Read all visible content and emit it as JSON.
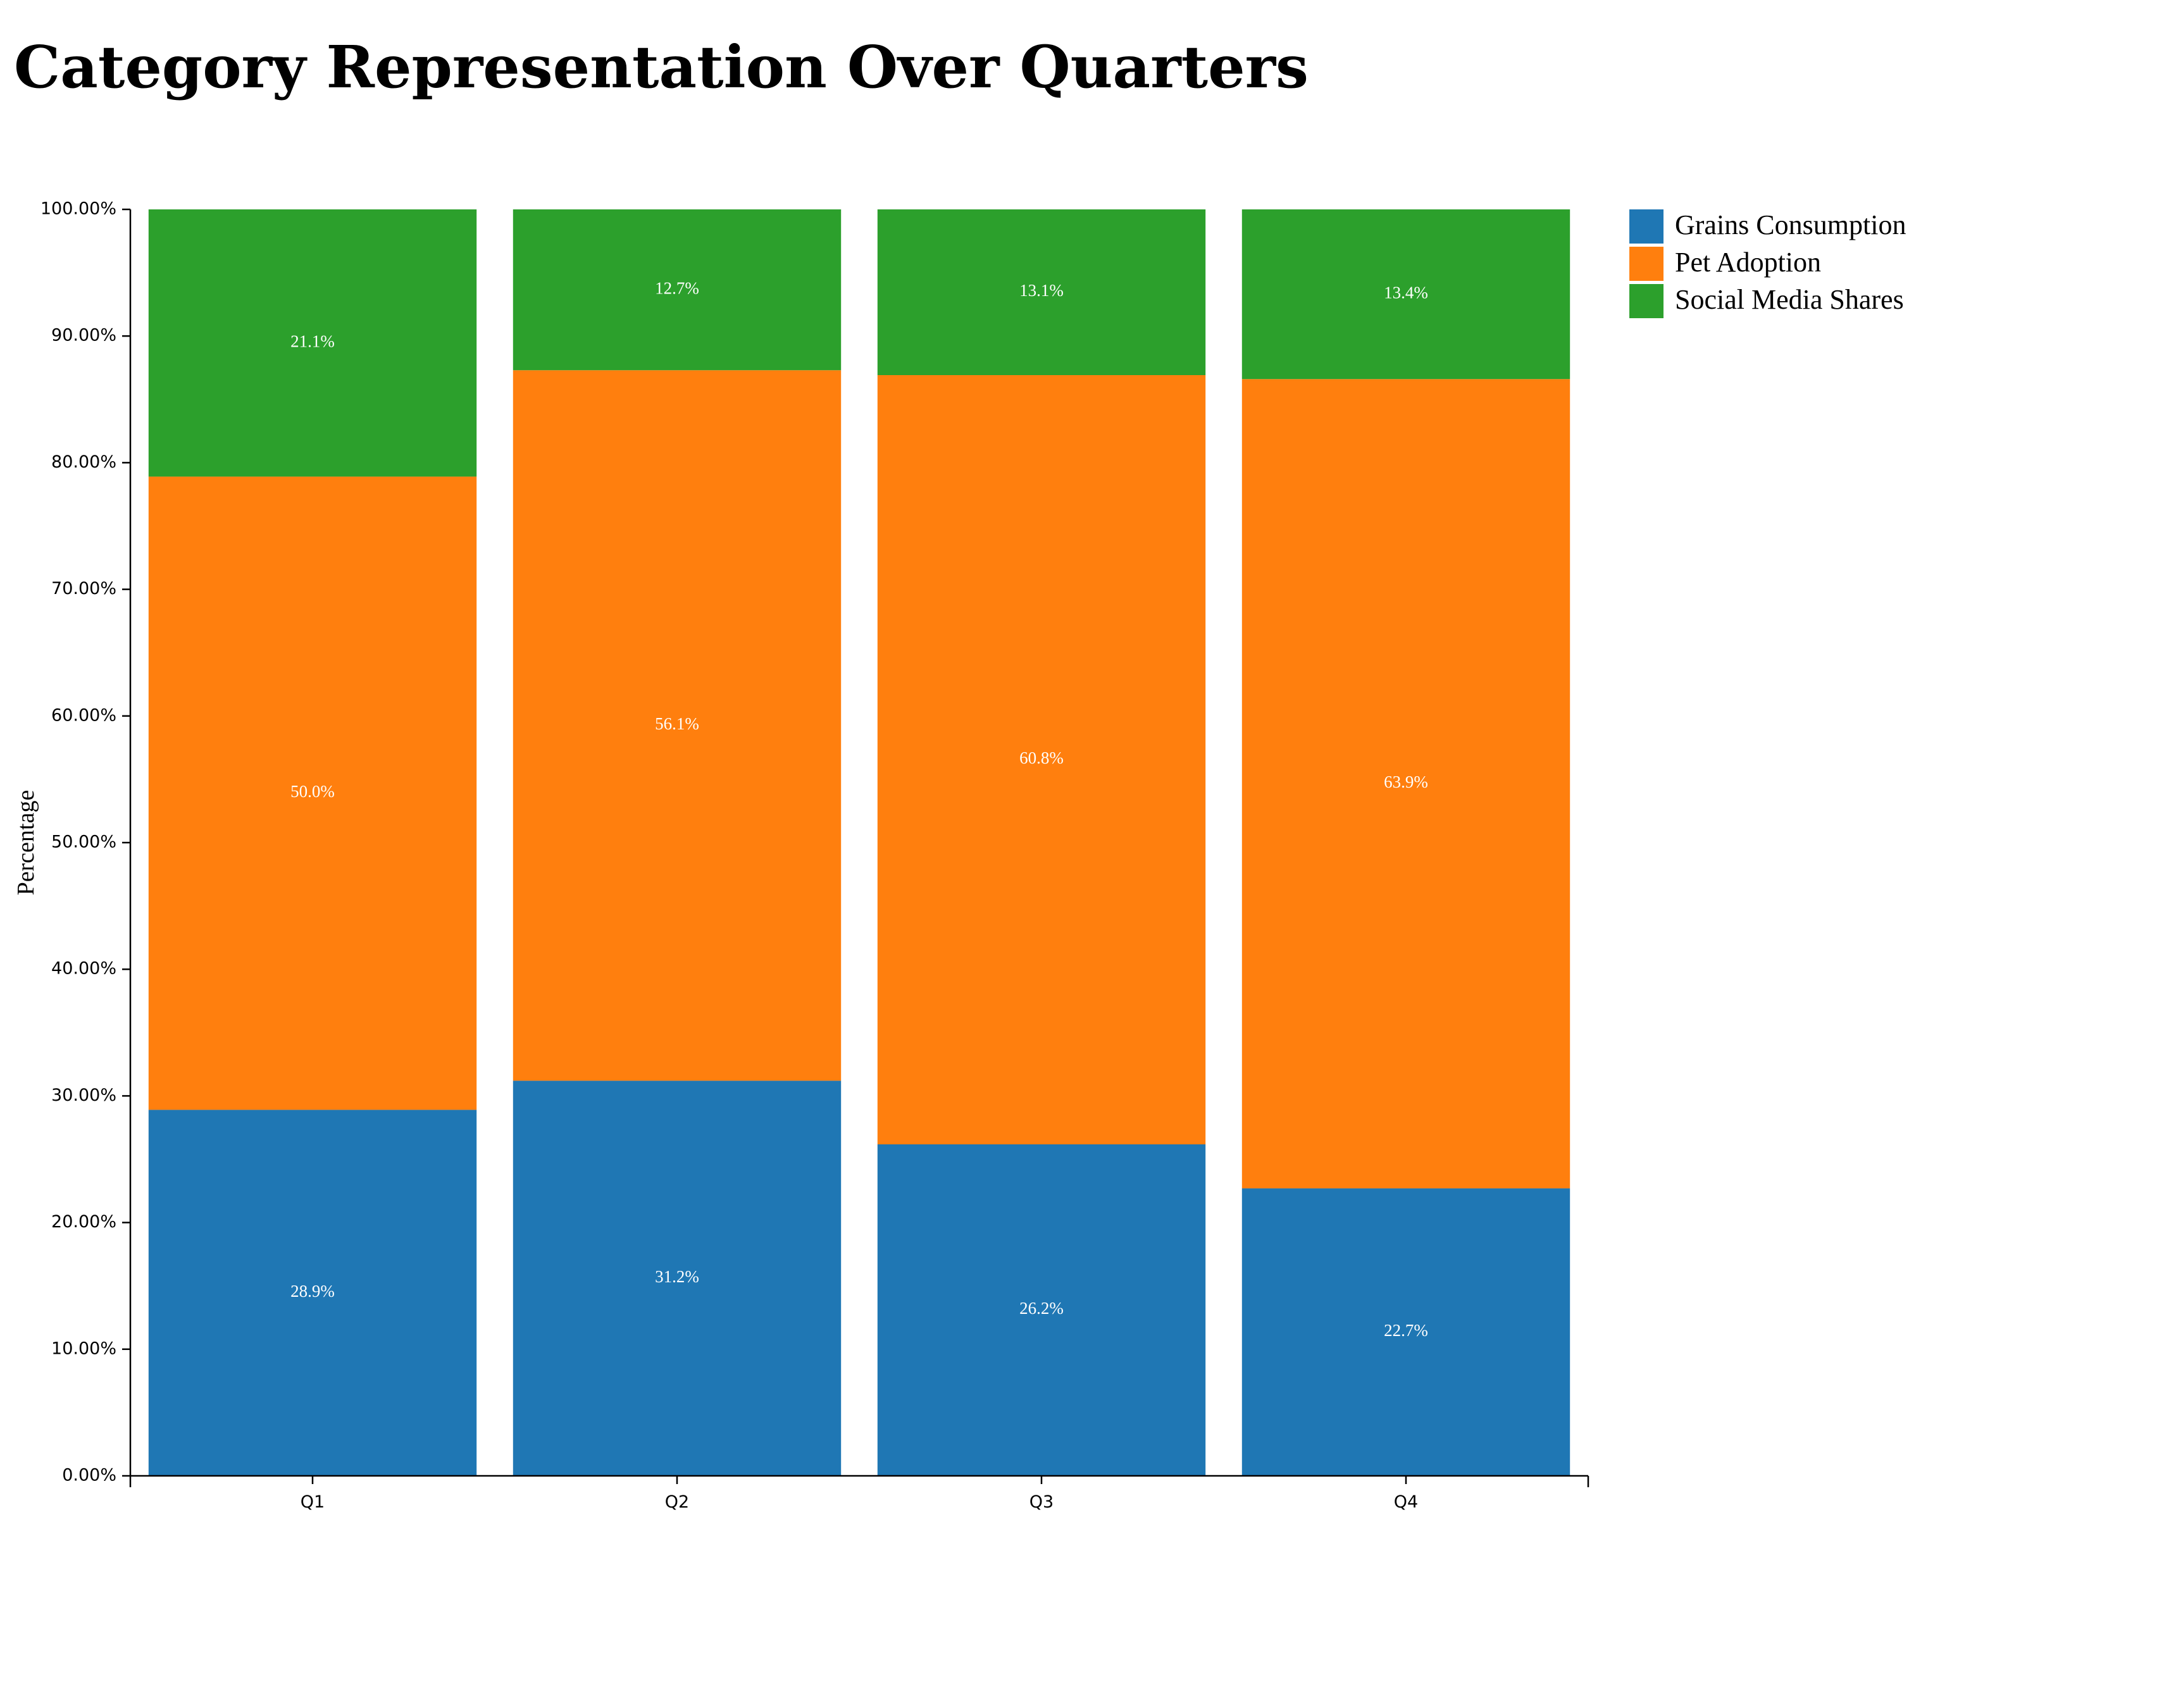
{
  "chart_data": {
    "type": "bar",
    "stacked": true,
    "normalized": true,
    "title": "Category Representation Over Quarters",
    "xlabel": "",
    "ylabel": "Percentage",
    "categories": [
      "Q1",
      "Q2",
      "Q3",
      "Q4"
    ],
    "ylim": [
      0,
      100
    ],
    "y_ticks": [
      "0.00%",
      "10.00%",
      "20.00%",
      "30.00%",
      "40.00%",
      "50.00%",
      "60.00%",
      "70.00%",
      "80.00%",
      "90.00%",
      "100.00%"
    ],
    "series": [
      {
        "name": "Grains Consumption",
        "color": "#1f77b4",
        "values": [
          28.9,
          31.2,
          26.2,
          22.7
        ],
        "labels": [
          "28.9%",
          "31.2%",
          "26.2%",
          "22.7%"
        ]
      },
      {
        "name": "Pet Adoption",
        "color": "#ff7f0e",
        "values": [
          50.0,
          56.1,
          60.8,
          63.9
        ],
        "labels": [
          "50.0%",
          "56.1%",
          "60.8%",
          "63.9%"
        ]
      },
      {
        "name": "Social Media Shares",
        "color": "#2ca02c",
        "values": [
          21.1,
          12.7,
          13.1,
          13.4
        ],
        "labels": [
          "21.1%",
          "12.7%",
          "13.1%",
          "13.4%"
        ]
      }
    ],
    "grid": false,
    "legend_position": "top-right"
  }
}
